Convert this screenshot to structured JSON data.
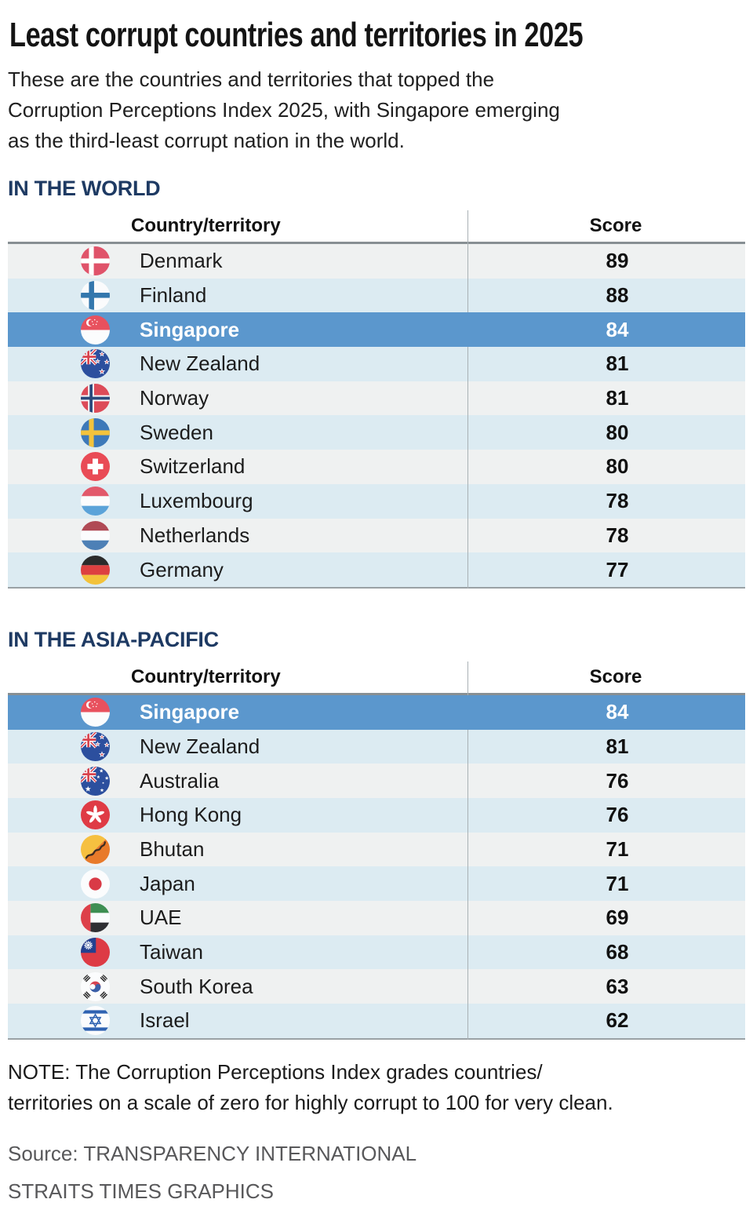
{
  "title": "Least corrupt countries and territories in 2025",
  "subtitle_lines": [
    "These are the countries and territories that topped the",
    "Corruption Perceptions Index 2025, with Singapore emerging",
    "as the third-least corrupt nation in the world."
  ],
  "columns": {
    "country": "Country/territory",
    "score": "Score"
  },
  "chart_data": [
    {
      "type": "table",
      "title": "IN THE WORLD",
      "columns": {
        "country": "Country/territory",
        "score": "Score"
      },
      "rows": [
        {
          "country": "Denmark",
          "score": 89,
          "flag": "denmark",
          "highlight": false
        },
        {
          "country": "Finland",
          "score": 88,
          "flag": "finland",
          "highlight": false
        },
        {
          "country": "Singapore",
          "score": 84,
          "flag": "singapore",
          "highlight": true
        },
        {
          "country": "New Zealand",
          "score": 81,
          "flag": "newzealand",
          "highlight": false
        },
        {
          "country": "Norway",
          "score": 81,
          "flag": "norway",
          "highlight": false
        },
        {
          "country": "Sweden",
          "score": 80,
          "flag": "sweden",
          "highlight": false
        },
        {
          "country": "Switzerland",
          "score": 80,
          "flag": "switzerland",
          "highlight": false
        },
        {
          "country": "Luxembourg",
          "score": 78,
          "flag": "luxembourg",
          "highlight": false
        },
        {
          "country": "Netherlands",
          "score": 78,
          "flag": "netherlands",
          "highlight": false
        },
        {
          "country": "Germany",
          "score": 77,
          "flag": "germany",
          "highlight": false
        }
      ]
    },
    {
      "type": "table",
      "title": "IN THE ASIA-PACIFIC",
      "columns": {
        "country": "Country/territory",
        "score": "Score"
      },
      "rows": [
        {
          "country": "Singapore",
          "score": 84,
          "flag": "singapore",
          "highlight": true
        },
        {
          "country": "New Zealand",
          "score": 81,
          "flag": "newzealand",
          "highlight": false
        },
        {
          "country": "Australia",
          "score": 76,
          "flag": "australia",
          "highlight": false
        },
        {
          "country": "Hong Kong",
          "score": 76,
          "flag": "hongkong",
          "highlight": false
        },
        {
          "country": "Bhutan",
          "score": 71,
          "flag": "bhutan",
          "highlight": false
        },
        {
          "country": "Japan",
          "score": 71,
          "flag": "japan",
          "highlight": false
        },
        {
          "country": "UAE",
          "score": 69,
          "flag": "uae",
          "highlight": false
        },
        {
          "country": "Taiwan",
          "score": 68,
          "flag": "taiwan",
          "highlight": false
        },
        {
          "country": "South Korea",
          "score": 63,
          "flag": "southkorea",
          "highlight": false
        },
        {
          "country": "Israel",
          "score": 62,
          "flag": "israel",
          "highlight": false
        }
      ]
    }
  ],
  "note_lines": [
    "NOTE: The Corruption Perceptions Index grades countries/",
    "territories on a scale of zero for highly corrupt to 100 for very clean."
  ],
  "source": "Source: TRANSPARENCY INTERNATIONAL",
  "credit": "STRAITS TIMES GRAPHICS",
  "colors": {
    "highlight": "#5b97cd",
    "row_alt_blue": "#dcebf2",
    "row_alt_gray": "#eff1f1",
    "section_heading": "#1e3a63",
    "header_border": "#878f93",
    "divider": "#a9b1b5"
  }
}
